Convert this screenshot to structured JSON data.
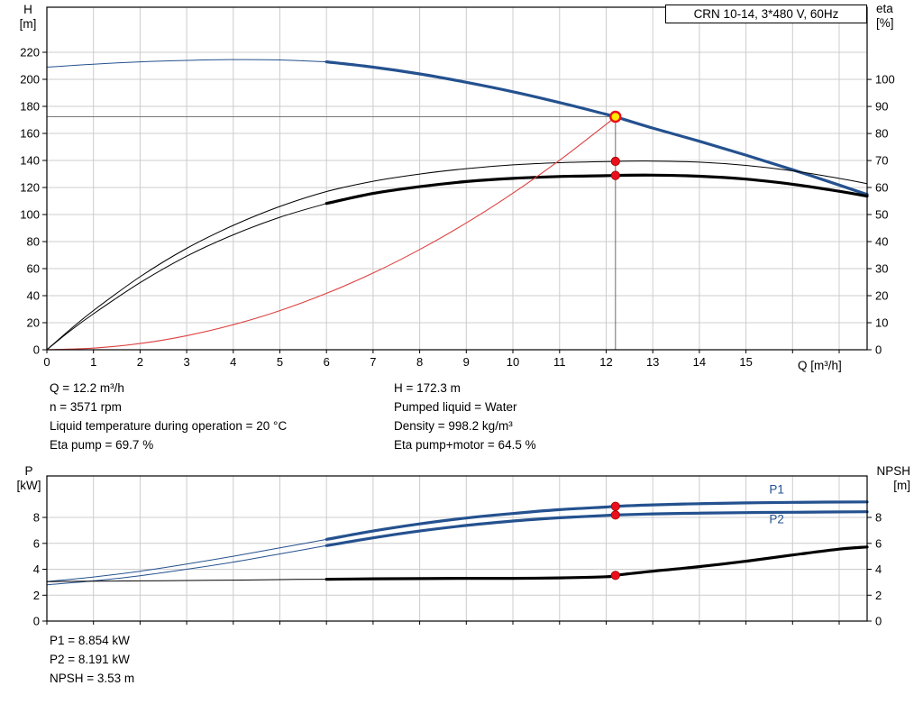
{
  "title_box": "CRN 10-14, 3*480 V, 60Hz",
  "info_top": {
    "left": [
      "Q = 12.2 m³/h",
      "n = 3571 rpm",
      "Liquid temperature during operation = 20 °C",
      "Eta pump = 69.7 %"
    ],
    "right": [
      "H = 172.3 m",
      "Pumped liquid = Water",
      "Density = 998.2 kg/m³",
      "Eta pump+motor = 64.5 %"
    ]
  },
  "info_bottom": [
    "P1 = 8.854 kW",
    "P2 = 8.191 kW",
    "NPSH = 3.53 m"
  ],
  "colors": {
    "curve_blue": "#24518f",
    "curve_black": "#000000",
    "curve_red": "#dd4040",
    "marker_red": "#e8101c",
    "marker_yellow": "#ffe900",
    "grid": "#cccccc",
    "crosshair": "#787878"
  },
  "chart_data": [
    {
      "type": "line",
      "name": "qh-eta-chart",
      "xlabel": "Q [m³/h]",
      "ylabel_left_1": "H",
      "ylabel_left_2": "[m]",
      "ylabel_right_1": "eta",
      "ylabel_right_2": "[%]",
      "xlim": [
        0,
        17.6
      ],
      "xticks": [
        0,
        1,
        2,
        3,
        4,
        5,
        6,
        7,
        8,
        9,
        10,
        11,
        12,
        13,
        14,
        15
      ],
      "ylim_left": [
        0,
        253.3
      ],
      "yticks_left": [
        0,
        20,
        40,
        60,
        80,
        100,
        120,
        140,
        160,
        180,
        200,
        220
      ],
      "ylim_right": [
        0,
        126.7
      ],
      "yticks_right": [
        0,
        10,
        20,
        30,
        40,
        50,
        60,
        70,
        80,
        90,
        100
      ],
      "crosshair": {
        "q": 12.2,
        "value": 172.3
      },
      "series": [
        {
          "name": "head",
          "color": "blue",
          "axis": "left",
          "thick_from": 6,
          "points": [
            [
              0,
              209
            ],
            [
              1,
              211.2
            ],
            [
              2,
              212.9
            ],
            [
              3,
              214
            ],
            [
              4,
              214.6
            ],
            [
              5,
              214.3
            ],
            [
              6,
              212.9
            ],
            [
              7,
              209
            ],
            [
              8,
              204
            ],
            [
              9,
              197.8
            ],
            [
              10,
              190.8
            ],
            [
              11,
              182.8
            ],
            [
              12,
              174.1
            ],
            [
              12.2,
              172.3
            ],
            [
              13,
              163.9
            ],
            [
              14,
              154.2
            ],
            [
              15,
              143.9
            ],
            [
              16,
              133.1
            ],
            [
              17,
              121.8
            ],
            [
              17.6,
              114.8
            ]
          ]
        },
        {
          "name": "eta-pump",
          "color": "black",
          "axis": "right",
          "thick_from": null,
          "width": 1,
          "points": [
            [
              0,
              0
            ],
            [
              0.5,
              7.5
            ],
            [
              1,
              14.5
            ],
            [
              2,
              27
            ],
            [
              3,
              37.5
            ],
            [
              4,
              46
            ],
            [
              5,
              53
            ],
            [
              6,
              58.5
            ],
            [
              7,
              62.3
            ],
            [
              8,
              65
            ],
            [
              9,
              67
            ],
            [
              10,
              68.4
            ],
            [
              11,
              69.2
            ],
            [
              12,
              69.6
            ],
            [
              12.2,
              69.7
            ],
            [
              13,
              69.8
            ],
            [
              14,
              69.4
            ],
            [
              15,
              68.2
            ],
            [
              16,
              66.2
            ],
            [
              17,
              63.4
            ],
            [
              17.6,
              61.4
            ]
          ]
        },
        {
          "name": "eta-pump-motor",
          "color": "black",
          "axis": "right",
          "thick_from": 6,
          "points": [
            [
              0,
              0
            ],
            [
              0.5,
              7
            ],
            [
              1,
              13.3
            ],
            [
              2,
              24.8
            ],
            [
              3,
              34.6
            ],
            [
              4,
              42.5
            ],
            [
              5,
              49
            ],
            [
              6,
              54.1
            ],
            [
              7,
              57.8
            ],
            [
              8,
              60.3
            ],
            [
              9,
              62.2
            ],
            [
              10,
              63.4
            ],
            [
              11,
              64.1
            ],
            [
              12,
              64.4
            ],
            [
              12.2,
              64.5
            ],
            [
              13,
              64.6
            ],
            [
              14,
              64.2
            ],
            [
              15,
              63.1
            ],
            [
              16,
              61.2
            ],
            [
              17,
              58.6
            ],
            [
              17.6,
              56.8
            ]
          ]
        },
        {
          "name": "system-curve",
          "color": "red",
          "axis": "left",
          "thick_from": null,
          "width": 1.1,
          "points": [
            [
              0,
              0
            ],
            [
              1,
              1.2
            ],
            [
              2,
              4.6
            ],
            [
              3,
              10.4
            ],
            [
              4,
              18.5
            ],
            [
              5,
              28.9
            ],
            [
              6,
              41.7
            ],
            [
              7,
              56.7
            ],
            [
              8,
              74.1
            ],
            [
              9,
              93.8
            ],
            [
              10,
              115.8
            ],
            [
              11,
              140.1
            ],
            [
              12,
              166.7
            ],
            [
              12.2,
              172.3
            ]
          ]
        }
      ],
      "markers": [
        {
          "q": 12.2,
          "value": 172.3,
          "axis": "left",
          "style": "duty-point"
        },
        {
          "q": 12.2,
          "value": 69.7,
          "axis": "right",
          "style": "dot"
        },
        {
          "q": 12.2,
          "value": 64.5,
          "axis": "right",
          "style": "dot"
        }
      ],
      "series_labels": []
    },
    {
      "type": "line",
      "name": "power-npsh-chart",
      "xlabel": "",
      "ylabel_left_1": "P",
      "ylabel_left_2": "[kW]",
      "ylabel_right_1": "NPSH",
      "ylabel_right_2": "[m]",
      "xlim": [
        0,
        17.6
      ],
      "xticks": [],
      "ylim_left": [
        0,
        11.2
      ],
      "yticks_left": [
        0,
        2,
        4,
        6,
        8
      ],
      "ylim_right": [
        0,
        11.2
      ],
      "yticks_right": [
        0,
        2,
        4,
        6,
        8
      ],
      "crosshair": null,
      "series": [
        {
          "name": "p1",
          "color": "blue",
          "axis": "left",
          "thick_from": 6,
          "points": [
            [
              0,
              3.05
            ],
            [
              1,
              3.4
            ],
            [
              2,
              3.85
            ],
            [
              3,
              4.4
            ],
            [
              4,
              5.0
            ],
            [
              5,
              5.65
            ],
            [
              6,
              6.3
            ],
            [
              7,
              6.95
            ],
            [
              8,
              7.5
            ],
            [
              9,
              7.95
            ],
            [
              10,
              8.3
            ],
            [
              11,
              8.6
            ],
            [
              12,
              8.8
            ],
            [
              12.2,
              8.854
            ],
            [
              13,
              8.97
            ],
            [
              14,
              9.06
            ],
            [
              15,
              9.12
            ],
            [
              16,
              9.16
            ],
            [
              17.6,
              9.2
            ]
          ]
        },
        {
          "name": "p2",
          "color": "blue",
          "axis": "left",
          "thick_from": 6,
          "points": [
            [
              0,
              2.8
            ],
            [
              1,
              3.1
            ],
            [
              2,
              3.5
            ],
            [
              3,
              4.0
            ],
            [
              4,
              4.55
            ],
            [
              5,
              5.18
            ],
            [
              6,
              5.82
            ],
            [
              7,
              6.42
            ],
            [
              8,
              6.95
            ],
            [
              9,
              7.38
            ],
            [
              10,
              7.72
            ],
            [
              11,
              7.97
            ],
            [
              12,
              8.15
            ],
            [
              12.2,
              8.191
            ],
            [
              13,
              8.27
            ],
            [
              14,
              8.33
            ],
            [
              15,
              8.37
            ],
            [
              16,
              8.4
            ],
            [
              17.6,
              8.44
            ]
          ]
        },
        {
          "name": "npsh",
          "color": "black",
          "axis": "right",
          "thick_from": 6,
          "points": [
            [
              0,
              3.05
            ],
            [
              1,
              3.08
            ],
            [
              2,
              3.1
            ],
            [
              3,
              3.13
            ],
            [
              4,
              3.16
            ],
            [
              5,
              3.2
            ],
            [
              6,
              3.23
            ],
            [
              7,
              3.26
            ],
            [
              8,
              3.28
            ],
            [
              9,
              3.3
            ],
            [
              10,
              3.3
            ],
            [
              11,
              3.33
            ],
            [
              12,
              3.42
            ],
            [
              12.2,
              3.53
            ],
            [
              13,
              3.85
            ],
            [
              14,
              4.2
            ],
            [
              15,
              4.62
            ],
            [
              16,
              5.1
            ],
            [
              17,
              5.55
            ],
            [
              17.6,
              5.72
            ]
          ]
        }
      ],
      "markers": [
        {
          "q": 12.2,
          "value": 8.854,
          "axis": "left",
          "style": "dot"
        },
        {
          "q": 12.2,
          "value": 8.191,
          "axis": "left",
          "style": "dot"
        },
        {
          "q": 12.2,
          "value": 3.53,
          "axis": "right",
          "style": "dot"
        }
      ],
      "series_labels": [
        {
          "text": "P1",
          "q": 15.5,
          "value": 9.85
        },
        {
          "text": "P2",
          "q": 15.5,
          "value": 7.55
        }
      ]
    }
  ]
}
